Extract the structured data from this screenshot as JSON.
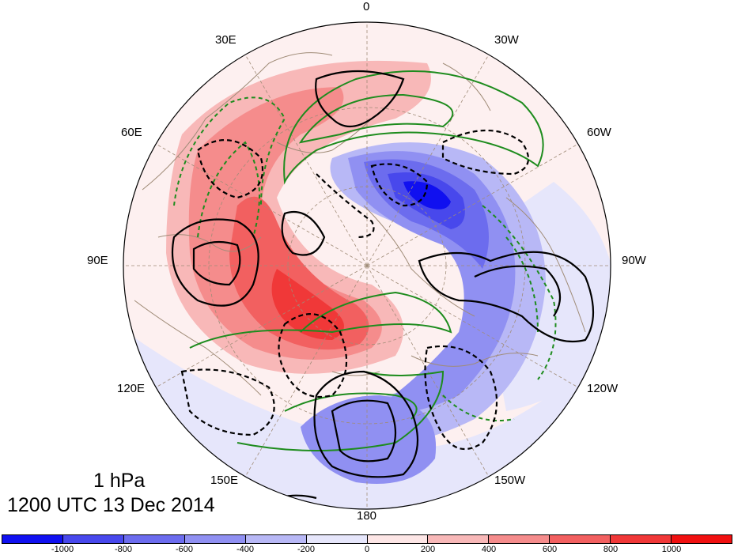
{
  "title": {
    "level": "1 hPa",
    "time": "1200 UTC 13 Dec 2014"
  },
  "longitude_labels": [
    {
      "id": "lon-0",
      "text": "0"
    },
    {
      "id": "lon-30w",
      "text": "30W"
    },
    {
      "id": "lon-60w",
      "text": "60W"
    },
    {
      "id": "lon-90w",
      "text": "90W"
    },
    {
      "id": "lon-120w",
      "text": "120W"
    },
    {
      "id": "lon-150w",
      "text": "150W"
    },
    {
      "id": "lon-180",
      "text": "180"
    },
    {
      "id": "lon-150e",
      "text": "150E"
    },
    {
      "id": "lon-120e",
      "text": "120E"
    },
    {
      "id": "lon-90e",
      "text": "90E"
    },
    {
      "id": "lon-60e",
      "text": "60E"
    },
    {
      "id": "lon-30e",
      "text": "30E"
    }
  ],
  "colorbar": {
    "colors": [
      "#1010f0",
      "#4848ec",
      "#6c6cee",
      "#9090f2",
      "#b8b8f6",
      "#e6e6fb",
      "#fde6e6",
      "#f8b8b8",
      "#f58c8c",
      "#f26060",
      "#f03838",
      "#f01010"
    ],
    "tick_labels": [
      "-1000",
      "-800",
      "-600",
      "-400",
      "-200",
      "0",
      "200",
      "400",
      "600",
      "800",
      "1000"
    ]
  },
  "colors": {
    "positive_line": "#000000",
    "negative_line": "#000000",
    "green_contour": "#1e8c1e",
    "coastline": "#a08c78",
    "graticule": "#a08c78"
  }
}
